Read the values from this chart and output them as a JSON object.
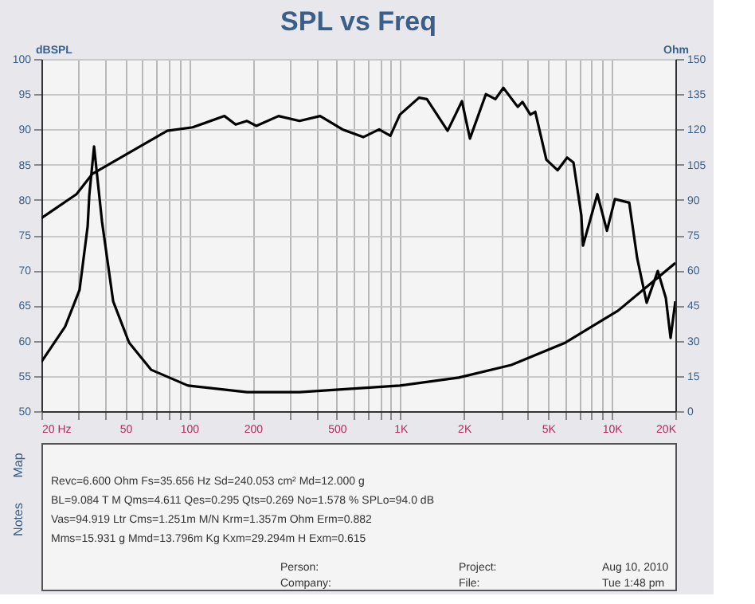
{
  "chart_data": {
    "type": "line",
    "title": "SPL vs Freq",
    "ylabel": "dBSPL",
    "y2label": "Ohm",
    "log": "x",
    "grid": true,
    "xlim": [
      20,
      20000
    ],
    "ylim": [
      50,
      100
    ],
    "y2lim": [
      0,
      150
    ],
    "xticks": [
      {
        "value": 20,
        "label": "20 Hz"
      },
      {
        "value": 30,
        "label": null
      },
      {
        "value": 40,
        "label": null
      },
      50,
      {
        "value": 60,
        "label": null
      },
      {
        "value": 70,
        "label": null
      },
      {
        "value": 80,
        "label": null
      },
      {
        "value": 90,
        "label": null
      },
      100,
      200,
      {
        "value": 300,
        "label": null
      },
      {
        "value": 400,
        "label": null
      },
      500,
      {
        "value": 600,
        "label": null
      },
      {
        "value": 700,
        "label": null
      },
      {
        "value": 800,
        "label": null
      },
      {
        "value": 900,
        "label": null
      },
      {
        "value": 1000,
        "label": "1K"
      },
      {
        "value": 2000,
        "label": "2K"
      },
      {
        "value": 3000,
        "label": null
      },
      {
        "value": 4000,
        "label": null
      },
      {
        "value": 5000,
        "label": "5K"
      },
      {
        "value": 6000,
        "label": null
      },
      {
        "value": 7000,
        "label": null
      },
      {
        "value": 8000,
        "label": null
      },
      {
        "value": 9000,
        "label": null
      },
      {
        "value": 10000,
        "label": "10K"
      },
      {
        "value": 20000,
        "label": "20K"
      }
    ],
    "yticks": [
      50,
      55,
      60,
      65,
      70,
      75,
      80,
      85,
      90,
      95,
      100
    ],
    "y2ticks": [
      0,
      15,
      30,
      45,
      60,
      75,
      90,
      105,
      120,
      135,
      150
    ],
    "series": [
      {
        "color": "#000000",
        "x": [
          20,
          22.6,
          29.3,
          34.9,
          58.7,
          78.8,
          104,
          147,
          166,
          188,
          208,
          265,
          333,
          417,
          532,
          667,
          793,
          896,
          994,
          1224,
          1334,
          1672,
          1955,
          2133,
          2537,
          2815,
          3070,
          3590,
          3780,
          4120,
          4345,
          4905,
          5540,
          6150,
          6590,
          7180,
          7310,
          8550,
          9490,
          10350,
          12100,
          13200,
          14630,
          16520,
          18020,
          18990,
          20000
        ],
        "values": [
          77.4,
          78.5,
          80.8,
          83.7,
          87.6,
          89.8,
          90.3,
          91.9,
          90.7,
          91.2,
          90.5,
          91.9,
          91.2,
          91.9,
          90.0,
          88.9,
          90.0,
          89.1,
          92.1,
          94.5,
          94.3,
          89.8,
          94.0,
          88.7,
          95.0,
          94.3,
          95.9,
          93.2,
          93.9,
          92.1,
          92.5,
          85.7,
          84.2,
          86.0,
          85.3,
          77.8,
          73.5,
          80.8,
          75.6,
          80.1,
          79.6,
          71.7,
          65.4,
          69.9,
          66.1,
          60.4,
          65.6
        ]
      },
      {
        "color": "#000000",
        "axis": "y2",
        "x": [
          20,
          25.9,
          30.3,
          33.1,
          33.7,
          35.5,
          38.7,
          43.7,
          52,
          66.2,
          98.7,
          188,
          333,
          994,
          1888,
          3350,
          6040,
          10710,
          20000
        ],
        "values": [
          21,
          36,
          51.6,
          78.7,
          92,
          112.7,
          80.8,
          46.8,
          29.2,
          17.6,
          10.9,
          8.1,
          8.1,
          10.9,
          14.3,
          19.7,
          29.2,
          42.8,
          63.1
        ]
      }
    ],
    "annotations": [
      "Map",
      "Notes",
      "Revc=6.600 Ohm  Fs=35.656 Hz  Sd=240.053 cm²  Md=12.000 g",
      "BL=9.084 T M  Qms=4.611  Qes=0.295  Qts=0.269  No=1.578 %  SPLo=94.0 dB",
      "Vas=94.919 Ltr  Cms=1.251m M/N  Krm=1.357m Ohm  Erm=0.882",
      "Mms=15.931 g  Mmd=13.796m Kg  Kxm=29.294m H  Exm=0.615",
      "Person:",
      "Company:",
      "Project:",
      "File:",
      "Aug 10, 2010",
      "Tue  1:48 pm"
    ]
  }
}
